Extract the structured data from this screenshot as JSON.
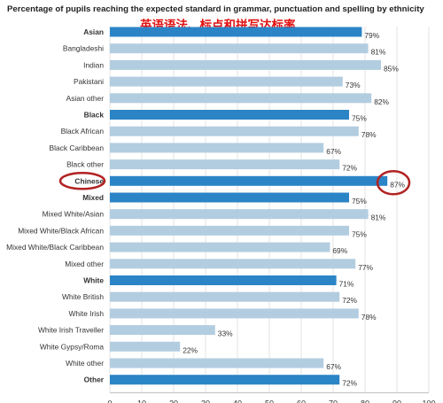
{
  "chart_data": {
    "type": "bar",
    "orientation": "horizontal",
    "title": "Percentage of pupils reaching the expected standard in grammar, punctuation and spelling by ethnicity",
    "subtitle": "英语语法、标点和拼写达标率",
    "categories": [
      "Asian",
      "Bangladeshi",
      "Indian",
      "Pakistani",
      "Asian other",
      "Black",
      "Black African",
      "Black Caribbean",
      "Black other",
      "Chinese",
      "Mixed",
      "Mixed White/Asian",
      "Mixed White/Black African",
      "Mixed White/Black Caribbean",
      "Mixed other",
      "White",
      "White British",
      "White Irish",
      "White Irish Traveller",
      "White Gypsy/Roma",
      "White other",
      "Other"
    ],
    "values": [
      79,
      81,
      85,
      73,
      82,
      75,
      78,
      67,
      72,
      87,
      75,
      81,
      75,
      69,
      77,
      71,
      72,
      78,
      33,
      22,
      67,
      72
    ],
    "value_labels": [
      "79%",
      "81%",
      "85%",
      "73%",
      "82%",
      "75%",
      "78%",
      "67%",
      "72%",
      "87%",
      "75%",
      "81%",
      "75%",
      "69%",
      "77%",
      "71%",
      "72%",
      "78%",
      "33%",
      "22%",
      "67%",
      "72%"
    ],
    "group_headers": [
      "Asian",
      "Black",
      "Mixed",
      "White",
      "Other"
    ],
    "highlighted": [
      "Chinese"
    ],
    "xlim": [
      0,
      100
    ],
    "xticks": [
      0,
      10,
      20,
      30,
      40,
      50,
      60,
      70,
      80,
      90,
      100
    ],
    "grid": true,
    "colors": {
      "group": "#2b84c6",
      "subgroup": "#b3cde0",
      "highlight_circle": "#b22222",
      "grid": "#e3e3e3"
    }
  }
}
